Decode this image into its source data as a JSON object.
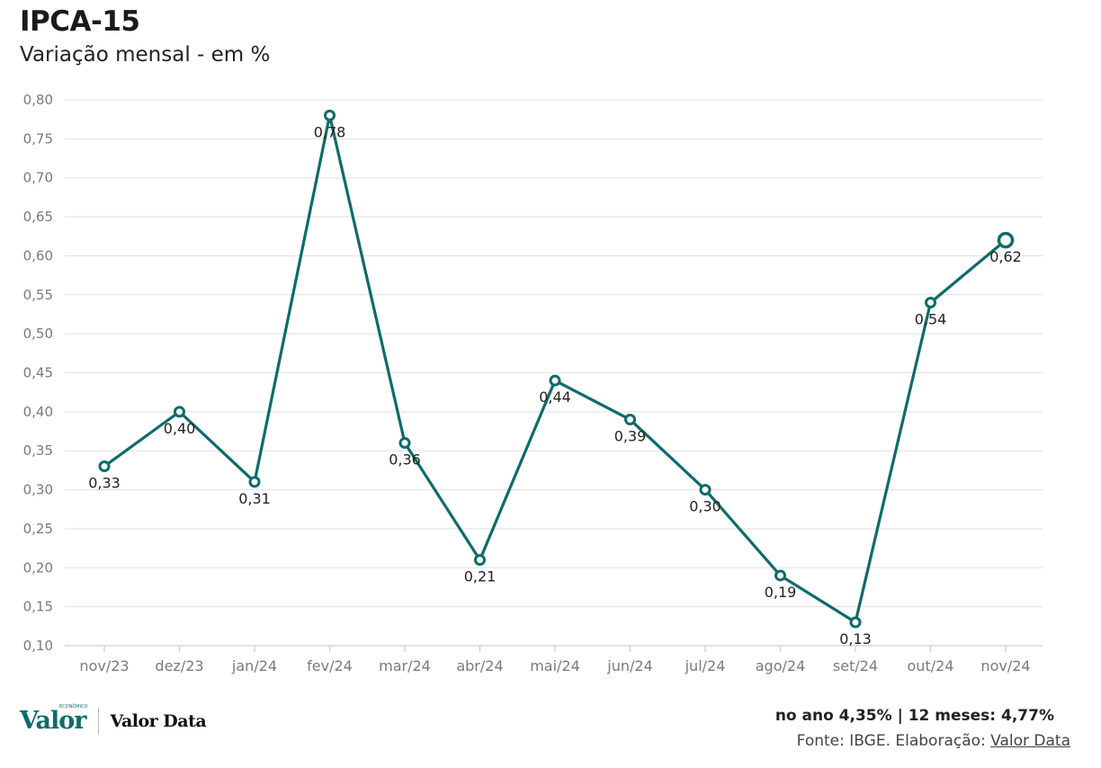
{
  "header": {
    "title": "IPCA-15",
    "subtitle": "Variação mensal - em %"
  },
  "colors": {
    "line": "#0e6b6b",
    "grid": "#e6e6e6",
    "tick_text": "#7a7a7a"
  },
  "chart_data": {
    "type": "line",
    "title": "IPCA-15",
    "subtitle": "Variação mensal - em %",
    "xlabel": "",
    "ylabel": "",
    "categories": [
      "nov/23",
      "dez/23",
      "jan/24",
      "fev/24",
      "mar/24",
      "abr/24",
      "mai/24",
      "jun/24",
      "jul/24",
      "ago/24",
      "set/24",
      "out/24",
      "nov/24"
    ],
    "series": [
      {
        "name": "IPCA-15",
        "values": [
          0.33,
          0.4,
          0.31,
          0.78,
          0.36,
          0.21,
          0.44,
          0.39,
          0.3,
          0.19,
          0.13,
          0.54,
          0.62
        ],
        "labels": [
          "0,33",
          "0,40",
          "0,31",
          "0,78",
          "0,36",
          "0,21",
          "0,44",
          "0,39",
          "0,30",
          "0,19",
          "0,13",
          "0,54",
          "0,62"
        ]
      }
    ],
    "ylim": [
      0.1,
      0.8
    ],
    "yticks": [
      0.1,
      0.15,
      0.2,
      0.25,
      0.3,
      0.35,
      0.4,
      0.45,
      0.5,
      0.55,
      0.6,
      0.65,
      0.7,
      0.75,
      0.8
    ],
    "ytick_labels": [
      "0,10",
      "0,15",
      "0,20",
      "0,25",
      "0,30",
      "0,35",
      "0,40",
      "0,45",
      "0,50",
      "0,55",
      "0,60",
      "0,65",
      "0,70",
      "0,75",
      "0,80"
    ],
    "grid": true,
    "legend": "none",
    "highlight_last_point": true
  },
  "footer": {
    "logo_brand": "Valor",
    "logo_tag": "ECONÔMICO",
    "logo_product": "Valor Data",
    "summary": "no ano 4,35% | 12 meses: 4,77%",
    "source_prefix": "Fonte: IBGE. Elaboração: ",
    "source_link": "Valor Data"
  }
}
